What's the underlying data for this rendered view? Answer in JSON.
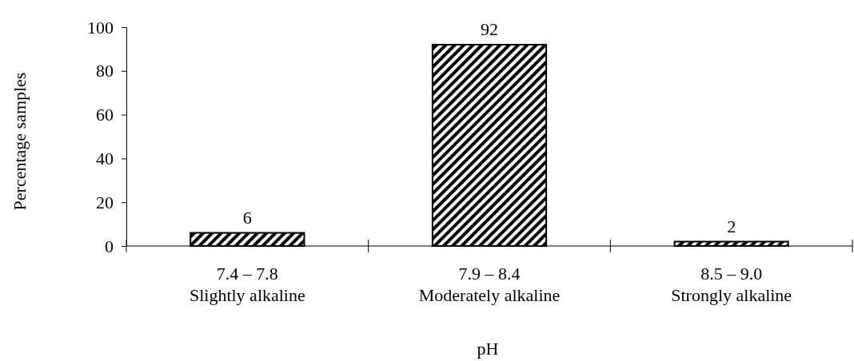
{
  "chart_data": {
    "type": "bar",
    "xlabel": "pH",
    "ylabel": "Percentage samples",
    "categories": [
      "7.4 – 7.8\nSlightly alkaline",
      "7.9 – 8.4\nModerately alkaline",
      "8.5 – 9.0\nStrongly alkaline"
    ],
    "values": [
      6,
      92,
      2
    ],
    "color": "#000000",
    "ylim": [
      0,
      100
    ],
    "yticks": [
      0,
      20,
      40,
      60,
      80,
      100
    ],
    "data_labels": true,
    "grid": false
  }
}
